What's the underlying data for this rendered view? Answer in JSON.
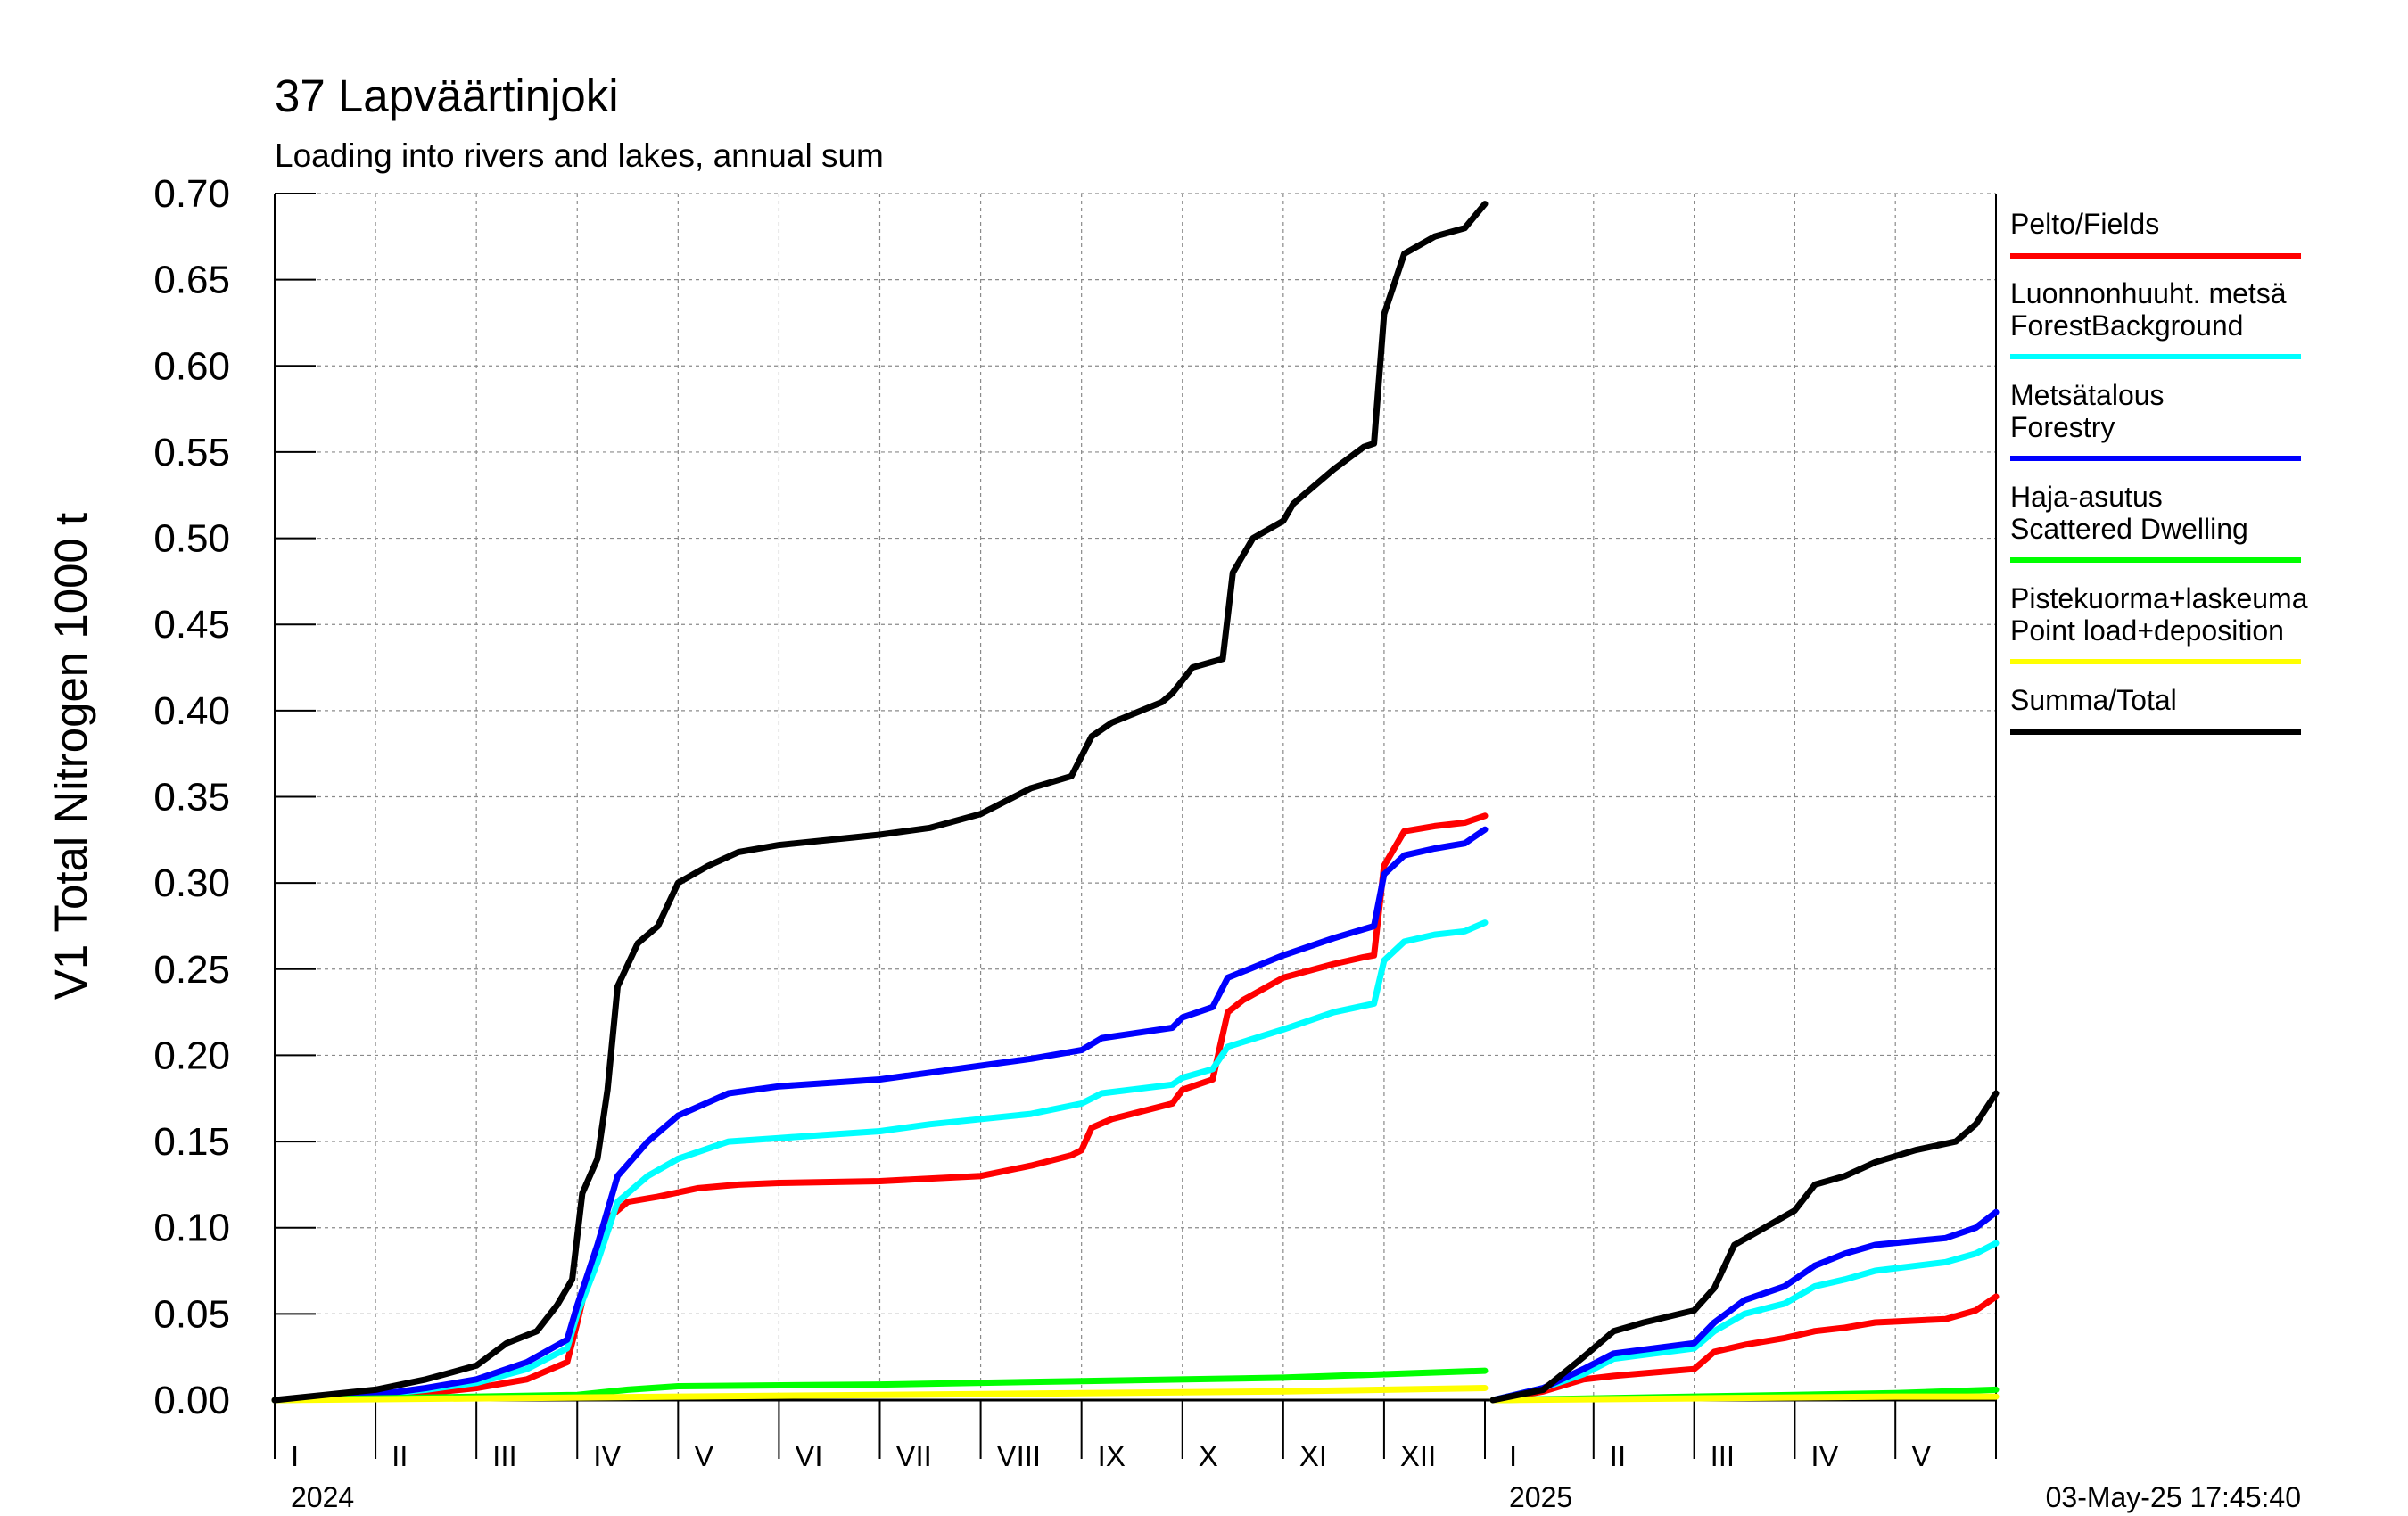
{
  "chart_data": {
    "type": "line",
    "title": "37 Lapväärtinjoki",
    "subtitle": "Loading into rivers and lakes, annual sum",
    "ylabel": "V1 Total Nitrogen 1000 t",
    "xlabel": "",
    "ylim": [
      0,
      0.7
    ],
    "yticks": [
      "0.00",
      "0.05",
      "0.10",
      "0.15",
      "0.20",
      "0.25",
      "0.30",
      "0.35",
      "0.40",
      "0.45",
      "0.50",
      "0.55",
      "0.60",
      "0.65",
      "0.70"
    ],
    "grid": true,
    "legend_position": "right",
    "years": [
      {
        "label": "2024",
        "months": [
          "I",
          "II",
          "III",
          "IV",
          "V",
          "VI",
          "VII",
          "VIII",
          "IX",
          "X",
          "XI",
          "XII"
        ]
      },
      {
        "label": "2025",
        "months": [
          "I",
          "II",
          "III",
          "IV",
          "V"
        ]
      }
    ],
    "x_unit": "month (fractional, 0 = 1 Jan)",
    "timestamp": "03-May-25 17:45:40",
    "series": [
      {
        "name": "Pelto/Fields",
        "color": "#ff0000",
        "y2024": [
          [
            0,
            0
          ],
          [
            1,
            0.002
          ],
          [
            1.5,
            0.004
          ],
          [
            2,
            0.007
          ],
          [
            2.5,
            0.012
          ],
          [
            2.9,
            0.022
          ],
          [
            3.0,
            0.045
          ],
          [
            3.1,
            0.07
          ],
          [
            3.3,
            0.105
          ],
          [
            3.5,
            0.115
          ],
          [
            3.8,
            0.118
          ],
          [
            4.2,
            0.123
          ],
          [
            4.6,
            0.125
          ],
          [
            5,
            0.126
          ],
          [
            6,
            0.127
          ],
          [
            7,
            0.13
          ],
          [
            7.5,
            0.136
          ],
          [
            7.9,
            0.142
          ],
          [
            8.0,
            0.145
          ],
          [
            8.1,
            0.158
          ],
          [
            8.3,
            0.163
          ],
          [
            8.9,
            0.172
          ],
          [
            9.0,
            0.18
          ],
          [
            9.3,
            0.186
          ],
          [
            9.45,
            0.225
          ],
          [
            9.6,
            0.232
          ],
          [
            10,
            0.245
          ],
          [
            10.5,
            0.253
          ],
          [
            10.8,
            0.257
          ],
          [
            10.9,
            0.258
          ],
          [
            11.0,
            0.31
          ],
          [
            11.2,
            0.33
          ],
          [
            11.5,
            0.333
          ],
          [
            11.8,
            0.335
          ],
          [
            12.0,
            0.339
          ]
        ],
        "y2025": [
          [
            0,
            0
          ],
          [
            0.5,
            0.005
          ],
          [
            0.9,
            0.012
          ],
          [
            1.2,
            0.014
          ],
          [
            2.0,
            0.018
          ],
          [
            2.2,
            0.028
          ],
          [
            2.5,
            0.032
          ],
          [
            2.9,
            0.036
          ],
          [
            3.2,
            0.04
          ],
          [
            3.5,
            0.042
          ],
          [
            3.8,
            0.045
          ],
          [
            4.5,
            0.047
          ],
          [
            4.8,
            0.052
          ],
          [
            5.0,
            0.06
          ]
        ]
      },
      {
        "name": "Luonnonhuuht. metsä",
        "name2": "ForestBackground",
        "color": "#00ffff",
        "y2024": [
          [
            0,
            0
          ],
          [
            1,
            0.003
          ],
          [
            1.5,
            0.006
          ],
          [
            2,
            0.01
          ],
          [
            2.5,
            0.018
          ],
          [
            2.9,
            0.03
          ],
          [
            3.0,
            0.05
          ],
          [
            3.2,
            0.08
          ],
          [
            3.4,
            0.115
          ],
          [
            3.7,
            0.13
          ],
          [
            4.0,
            0.14
          ],
          [
            4.5,
            0.15
          ],
          [
            5,
            0.152
          ],
          [
            6,
            0.156
          ],
          [
            6.5,
            0.16
          ],
          [
            7.5,
            0.166
          ],
          [
            8.0,
            0.172
          ],
          [
            8.2,
            0.178
          ],
          [
            8.9,
            0.183
          ],
          [
            9.0,
            0.187
          ],
          [
            9.3,
            0.192
          ],
          [
            9.45,
            0.205
          ],
          [
            10,
            0.215
          ],
          [
            10.5,
            0.225
          ],
          [
            10.9,
            0.23
          ],
          [
            11.0,
            0.255
          ],
          [
            11.2,
            0.266
          ],
          [
            11.5,
            0.27
          ],
          [
            11.8,
            0.272
          ],
          [
            12.0,
            0.277
          ]
        ],
        "y2025": [
          [
            0,
            0
          ],
          [
            0.5,
            0.007
          ],
          [
            0.9,
            0.015
          ],
          [
            1.2,
            0.024
          ],
          [
            2.0,
            0.03
          ],
          [
            2.2,
            0.04
          ],
          [
            2.5,
            0.05
          ],
          [
            2.9,
            0.056
          ],
          [
            3.2,
            0.066
          ],
          [
            3.5,
            0.07
          ],
          [
            3.8,
            0.075
          ],
          [
            4.5,
            0.08
          ],
          [
            4.8,
            0.085
          ],
          [
            5.0,
            0.091
          ]
        ]
      },
      {
        "name": "Metsätalous",
        "name2": "Forestry",
        "color": "#0000ff",
        "y2024": [
          [
            0,
            0
          ],
          [
            1,
            0.003
          ],
          [
            1.5,
            0.007
          ],
          [
            2,
            0.012
          ],
          [
            2.5,
            0.022
          ],
          [
            2.9,
            0.035
          ],
          [
            3.0,
            0.055
          ],
          [
            3.2,
            0.09
          ],
          [
            3.4,
            0.13
          ],
          [
            3.7,
            0.15
          ],
          [
            4.0,
            0.165
          ],
          [
            4.5,
            0.178
          ],
          [
            5,
            0.182
          ],
          [
            6,
            0.186
          ],
          [
            6.5,
            0.19
          ],
          [
            7.5,
            0.198
          ],
          [
            8.0,
            0.203
          ],
          [
            8.2,
            0.21
          ],
          [
            8.9,
            0.216
          ],
          [
            9.0,
            0.222
          ],
          [
            9.3,
            0.228
          ],
          [
            9.45,
            0.245
          ],
          [
            10,
            0.258
          ],
          [
            10.5,
            0.268
          ],
          [
            10.9,
            0.275
          ],
          [
            11.0,
            0.305
          ],
          [
            11.2,
            0.316
          ],
          [
            11.5,
            0.32
          ],
          [
            11.8,
            0.323
          ],
          [
            12.0,
            0.331
          ]
        ],
        "y2025": [
          [
            0,
            0
          ],
          [
            0.5,
            0.007
          ],
          [
            0.9,
            0.018
          ],
          [
            1.2,
            0.027
          ],
          [
            2.0,
            0.033
          ],
          [
            2.2,
            0.045
          ],
          [
            2.5,
            0.058
          ],
          [
            2.9,
            0.066
          ],
          [
            3.2,
            0.078
          ],
          [
            3.5,
            0.085
          ],
          [
            3.8,
            0.09
          ],
          [
            4.5,
            0.094
          ],
          [
            4.8,
            0.1
          ],
          [
            5.0,
            0.109
          ]
        ]
      },
      {
        "name": "Haja-asutus",
        "name2": "Scattered Dwelling",
        "color": "#00ff00",
        "y2024": [
          [
            0,
            0
          ],
          [
            3,
            0.003
          ],
          [
            3.5,
            0.006
          ],
          [
            4,
            0.008
          ],
          [
            6,
            0.009
          ],
          [
            8,
            0.011
          ],
          [
            10,
            0.013
          ],
          [
            11,
            0.015
          ],
          [
            12,
            0.017
          ]
        ],
        "y2025": [
          [
            0,
            0
          ],
          [
            1,
            0.001
          ],
          [
            2,
            0.002
          ],
          [
            3,
            0.003
          ],
          [
            4,
            0.004
          ],
          [
            5,
            0.006
          ]
        ]
      },
      {
        "name": "Pistekuorma+laskeuma",
        "name2": "Point load+deposition",
        "color": "#ffff00",
        "y2024": [
          [
            0,
            0
          ],
          [
            2,
            0.001
          ],
          [
            4,
            0.002
          ],
          [
            6,
            0.003
          ],
          [
            8,
            0.004
          ],
          [
            10,
            0.005
          ],
          [
            12,
            0.007
          ]
        ],
        "y2025": [
          [
            0,
            0
          ],
          [
            2,
            0.001
          ],
          [
            4,
            0.002
          ],
          [
            5,
            0.002
          ]
        ]
      },
      {
        "name": "Summa/Total",
        "color": "#000000",
        "y2024": [
          [
            0,
            0
          ],
          [
            0.5,
            0.003
          ],
          [
            1,
            0.006
          ],
          [
            1.5,
            0.012
          ],
          [
            2,
            0.02
          ],
          [
            2.3,
            0.033
          ],
          [
            2.6,
            0.04
          ],
          [
            2.8,
            0.055
          ],
          [
            2.95,
            0.07
          ],
          [
            3.05,
            0.12
          ],
          [
            3.2,
            0.14
          ],
          [
            3.3,
            0.18
          ],
          [
            3.4,
            0.24
          ],
          [
            3.6,
            0.265
          ],
          [
            3.8,
            0.275
          ],
          [
            4.0,
            0.3
          ],
          [
            4.3,
            0.31
          ],
          [
            4.6,
            0.318
          ],
          [
            5,
            0.322
          ],
          [
            6,
            0.328
          ],
          [
            6.5,
            0.332
          ],
          [
            7.0,
            0.34
          ],
          [
            7.5,
            0.355
          ],
          [
            7.9,
            0.362
          ],
          [
            8.1,
            0.385
          ],
          [
            8.3,
            0.393
          ],
          [
            8.8,
            0.405
          ],
          [
            8.9,
            0.41
          ],
          [
            9.1,
            0.425
          ],
          [
            9.4,
            0.43
          ],
          [
            9.5,
            0.48
          ],
          [
            9.7,
            0.5
          ],
          [
            10,
            0.51
          ],
          [
            10.1,
            0.52
          ],
          [
            10.3,
            0.53
          ],
          [
            10.5,
            0.54
          ],
          [
            10.8,
            0.553
          ],
          [
            10.9,
            0.555
          ],
          [
            11.0,
            0.63
          ],
          [
            11.2,
            0.665
          ],
          [
            11.5,
            0.675
          ],
          [
            11.8,
            0.68
          ],
          [
            12.0,
            0.694
          ]
        ],
        "y2025": [
          [
            0,
            0
          ],
          [
            0.5,
            0.006
          ],
          [
            0.9,
            0.025
          ],
          [
            1.2,
            0.04
          ],
          [
            1.5,
            0.045
          ],
          [
            2.0,
            0.052
          ],
          [
            2.2,
            0.065
          ],
          [
            2.4,
            0.09
          ],
          [
            2.7,
            0.1
          ],
          [
            3.0,
            0.11
          ],
          [
            3.2,
            0.125
          ],
          [
            3.5,
            0.13
          ],
          [
            3.8,
            0.138
          ],
          [
            4.2,
            0.145
          ],
          [
            4.6,
            0.15
          ],
          [
            4.8,
            0.16
          ],
          [
            5.0,
            0.178
          ]
        ]
      }
    ]
  }
}
